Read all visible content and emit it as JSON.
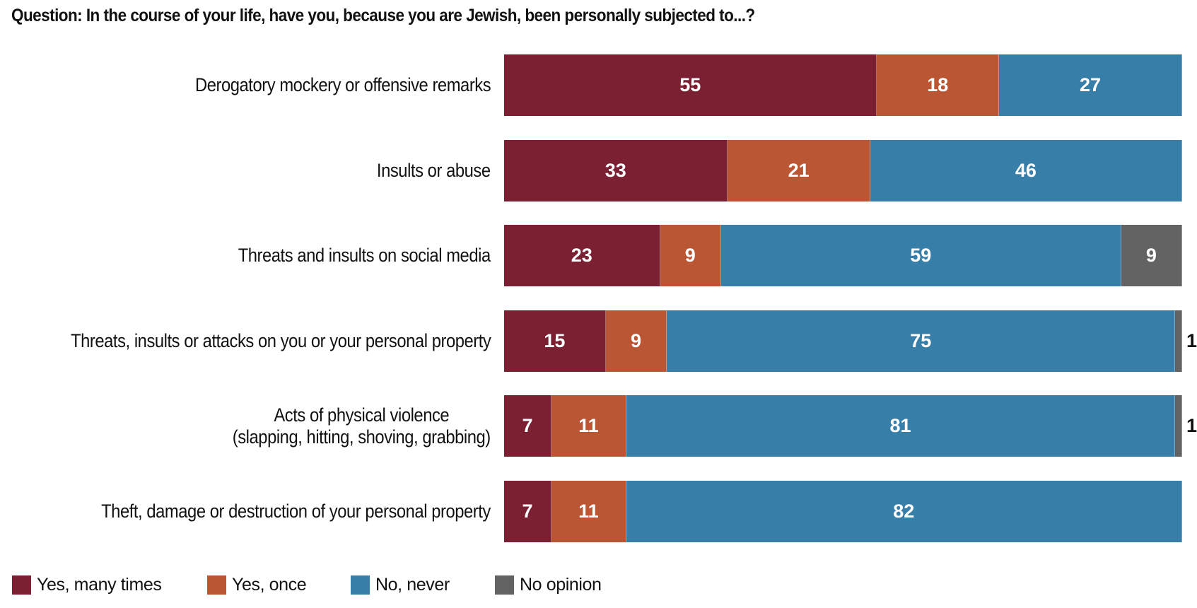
{
  "chart_data": {
    "type": "bar",
    "orientation": "horizontal",
    "stacked": true,
    "title": "Question: In the course of your life, have you, because you are Jewish, been personally subjected to...?",
    "categories": [
      "Derogatory mockery or offensive remarks",
      "Insults or abuse",
      "Threats and insults on social media",
      "Threats, insults or attacks on you or your personal property",
      "Acts of physical violence\n(slapping, hitting, shoving, grabbing)",
      "Theft, damage or destruction of your personal property"
    ],
    "series": [
      {
        "name": "Yes, many times",
        "color": "#7b1f32",
        "values": [
          55,
          33,
          23,
          15,
          7,
          7
        ]
      },
      {
        "name": "Yes, once",
        "color": "#bb5634",
        "values": [
          18,
          21,
          9,
          9,
          11,
          11
        ]
      },
      {
        "name": "No, never",
        "color": "#377ea9",
        "values": [
          27,
          46,
          59,
          75,
          81,
          82
        ]
      },
      {
        "name": "No opinion",
        "color": "#636363",
        "values": [
          0,
          0,
          9,
          1,
          1,
          0
        ]
      }
    ],
    "xlim": [
      0,
      100
    ],
    "grid": false,
    "legend_position": "bottom-left"
  }
}
